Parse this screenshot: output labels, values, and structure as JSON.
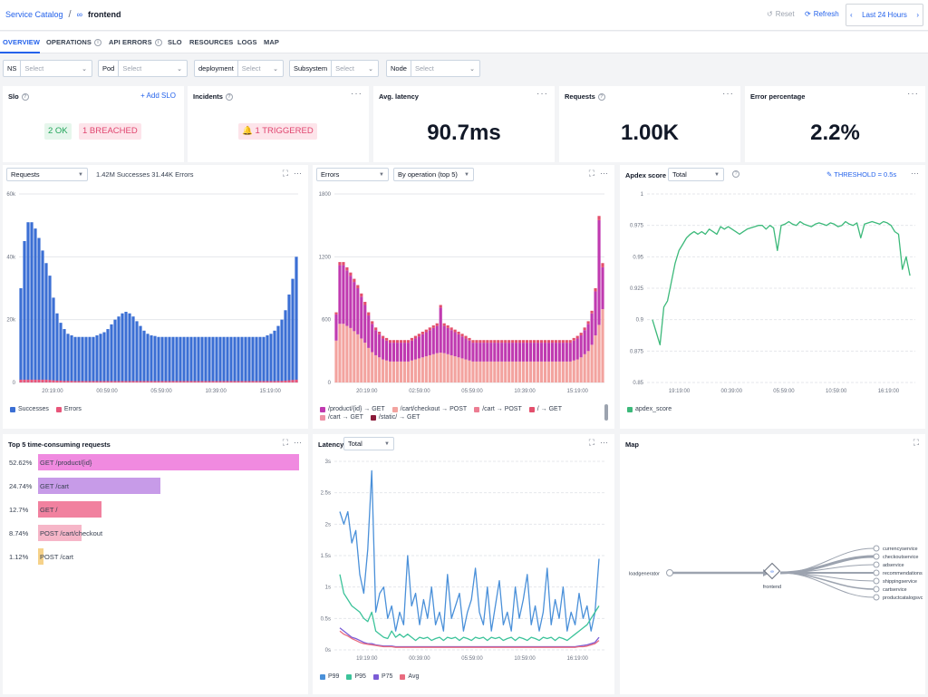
{
  "topbar": {
    "breadcrumb_root": "Service Catalog",
    "breadcrumb_sep": "/",
    "breadcrumb_current": "frontend",
    "reset_label": "Reset",
    "refresh_label": "Refresh",
    "time_range": "Last 24 Hours",
    "prev_arrow": "‹",
    "next_arrow": "›"
  },
  "tabs": [
    {
      "label": "OVERVIEW",
      "active": true
    },
    {
      "label": "OPERATIONS",
      "info": true
    },
    {
      "label": "API ERRORS",
      "info": true
    },
    {
      "label": "SLO"
    },
    {
      "label": "RESOURCES"
    },
    {
      "label": "LOGS"
    },
    {
      "label": "MAP"
    }
  ],
  "filters": [
    {
      "label": "NS",
      "placeholder": "Select"
    },
    {
      "label": "Pod",
      "placeholder": "Select"
    },
    {
      "label": "deployment",
      "placeholder": "Select"
    },
    {
      "label": "Subsystem",
      "placeholder": "Select"
    },
    {
      "label": "Node",
      "placeholder": "Select"
    }
  ],
  "stats": {
    "slo": {
      "title": "Slo",
      "add_label": "+ Add SLO",
      "ok_badge": "2 OK",
      "breached_badge": "1 BREACHED"
    },
    "incidents": {
      "title": "Incidents",
      "badge": "🔔 1 TRIGGERED"
    },
    "latency": {
      "title": "Avg. latency",
      "value": "90.7ms"
    },
    "requests": {
      "title": "Requests",
      "value": "1.00K"
    },
    "error_pct": {
      "title": "Error percentage",
      "value": "2.2%"
    }
  },
  "requests_panel": {
    "select": "Requests",
    "summary": "1.42M Successes 31.44K Errors",
    "legend": [
      {
        "name": "Successes",
        "color": "#3b6fd4"
      },
      {
        "name": "Errors",
        "color": "#e8557a"
      }
    ]
  },
  "errors_panel": {
    "select1": "Errors",
    "select2": "By operation (top 5)",
    "legend": [
      {
        "name": "/product/{id} → GET",
        "color": "#c03ab0"
      },
      {
        "name": "/cart/checkout → POST",
        "color": "#f3a39f"
      },
      {
        "name": "/cart → POST",
        "color": "#ec7d92"
      },
      {
        "name": "/ → GET",
        "color": "#e34f6c"
      },
      {
        "name": "/cart → GET",
        "color": "#ee90a5"
      },
      {
        "name": "/static/ → GET",
        "color": "#8b1b3a"
      }
    ]
  },
  "apdex_panel": {
    "title": "Apdex score",
    "select": "Total",
    "threshold": "THRESHOLD = 0.5s",
    "legend": [
      {
        "name": "apdex_score",
        "color": "#3cb97a"
      }
    ]
  },
  "top5_panel": {
    "title": "Top 5 time-consuming requests",
    "rows": [
      {
        "pct": "52.62%",
        "label": "GET /product/{id}",
        "value": 52.62,
        "color": "#f08ae0"
      },
      {
        "pct": "24.74%",
        "label": "GET /cart",
        "value": 24.74,
        "color": "#c79be8"
      },
      {
        "pct": "12.7%",
        "label": "GET /",
        "value": 12.7,
        "color": "#f1819f"
      },
      {
        "pct": "8.74%",
        "label": "POST /cart/checkout",
        "value": 8.74,
        "color": "#f6b6c8"
      },
      {
        "pct": "1.12%",
        "label": "POST /cart",
        "value": 1.12,
        "color": "#f6d28a"
      }
    ]
  },
  "latency_panel": {
    "title": "Latency",
    "select": "Total",
    "legend": [
      {
        "name": "P99",
        "color": "#4a90d9"
      },
      {
        "name": "P95",
        "color": "#3cc39a"
      },
      {
        "name": "P75",
        "color": "#7b5cd6"
      },
      {
        "name": "Avg",
        "color": "#e96b7f"
      }
    ]
  },
  "map_panel": {
    "title": "Map",
    "source": "loadgenerator",
    "center": "frontend",
    "targets": [
      "currencyservice",
      "checkoutservice",
      "adservice",
      "recommendations",
      "shippingservice",
      "cartservice",
      "productcatalogsvc"
    ]
  },
  "chart_data": [
    {
      "type": "bar",
      "id": "requests",
      "ylim": [
        0,
        60000
      ],
      "yticks": [
        "0",
        "20k",
        "40k",
        "60k"
      ],
      "xticks": [
        "20:19:00",
        "00:59:00",
        "05:59:00",
        "10:39:00",
        "15:19:00"
      ],
      "series": [
        {
          "name": "Successes",
          "values": [
            30000,
            45000,
            51000,
            51000,
            49000,
            46000,
            42000,
            38000,
            34000,
            27000,
            22000,
            19000,
            17000,
            15500,
            15000,
            14500,
            14500,
            14500,
            14500,
            14500,
            14500,
            15000,
            15500,
            16000,
            17000,
            18500,
            20000,
            21000,
            22000,
            22500,
            22000,
            21000,
            19500,
            18000,
            16500,
            15500,
            15000,
            14800,
            14500,
            14500,
            14500,
            14500,
            14500,
            14500,
            14500,
            14500,
            14500,
            14500,
            14500,
            14500,
            14500,
            14500,
            14500,
            14500,
            14500,
            14500,
            14500,
            14500,
            14500,
            14500,
            14500,
            14500,
            14500,
            14500,
            14500,
            14500,
            14500,
            14500,
            15000,
            15500,
            16500,
            18000,
            20000,
            23000,
            28000,
            33000,
            40000
          ]
        },
        {
          "name": "Errors",
          "values": [
            900,
            900,
            900,
            900,
            900,
            900,
            900,
            900,
            800,
            700,
            600,
            600,
            500,
            500,
            500,
            450,
            450,
            450,
            450,
            450,
            450,
            450,
            450,
            450,
            450,
            450,
            450,
            450,
            450,
            450,
            450,
            450,
            450,
            450,
            450,
            450,
            450,
            450,
            450,
            450,
            450,
            450,
            450,
            450,
            450,
            450,
            450,
            450,
            450,
            450,
            450,
            450,
            450,
            450,
            450,
            450,
            450,
            450,
            450,
            450,
            450,
            450,
            450,
            450,
            450,
            450,
            450,
            450,
            450,
            450,
            450,
            500,
            500,
            600,
            700,
            800,
            900
          ]
        }
      ]
    },
    {
      "type": "bar",
      "id": "errors",
      "stacked": true,
      "ylim": [
        0,
        1800
      ],
      "yticks": [
        "0",
        "600",
        "1200",
        "1800"
      ],
      "xticks": [
        "20:19:00",
        "02:59:00",
        "05:59:00",
        "10:39:00",
        "15:19:00"
      ],
      "series": [
        {
          "name": "/cart/checkout → POST",
          "values": [
            400,
            560,
            560,
            540,
            520,
            490,
            460,
            420,
            380,
            330,
            290,
            260,
            240,
            220,
            210,
            200,
            200,
            200,
            200,
            200,
            200,
            210,
            220,
            230,
            240,
            250,
            260,
            270,
            280,
            285,
            280,
            270,
            260,
            250,
            240,
            230,
            220,
            210,
            200,
            200,
            200,
            200,
            200,
            200,
            200,
            200,
            200,
            200,
            200,
            200,
            200,
            200,
            200,
            200,
            200,
            200,
            200,
            200,
            200,
            200,
            200,
            200,
            200,
            200,
            200,
            200,
            210,
            220,
            240,
            270,
            300,
            360,
            450,
            550,
            700
          ]
        },
        {
          "name": "/product/{id} → GET",
          "values": [
            250,
            560,
            560,
            530,
            500,
            470,
            440,
            400,
            360,
            310,
            270,
            240,
            220,
            200,
            190,
            180,
            180,
            180,
            180,
            180,
            180,
            190,
            200,
            210,
            220,
            230,
            240,
            250,
            260,
            430,
            260,
            250,
            240,
            230,
            220,
            210,
            200,
            190,
            180,
            180,
            180,
            180,
            180,
            180,
            180,
            180,
            180,
            180,
            180,
            180,
            180,
            180,
            180,
            180,
            180,
            180,
            180,
            180,
            180,
            180,
            180,
            180,
            180,
            180,
            180,
            180,
            190,
            200,
            210,
            230,
            260,
            300,
            420,
            1000,
            400
          ]
        },
        {
          "name": "/ → GET",
          "values": [
            20,
            30,
            30,
            30,
            30,
            30,
            30,
            30,
            30,
            30,
            25,
            25,
            25,
            25,
            25,
            25,
            25,
            25,
            25,
            25,
            25,
            25,
            25,
            25,
            25,
            25,
            25,
            25,
            25,
            25,
            25,
            25,
            25,
            25,
            25,
            25,
            25,
            25,
            25,
            25,
            25,
            25,
            25,
            25,
            25,
            25,
            25,
            25,
            25,
            25,
            25,
            25,
            25,
            25,
            25,
            25,
            25,
            25,
            25,
            25,
            25,
            25,
            25,
            25,
            25,
            25,
            25,
            25,
            25,
            25,
            25,
            25,
            30,
            40,
            40
          ]
        }
      ]
    },
    {
      "type": "line",
      "id": "apdex",
      "ylim": [
        0.85,
        1.0
      ],
      "yticks": [
        "0.85",
        "0.875",
        "0.9",
        "0.925",
        "0.95",
        "0.975",
        "1"
      ],
      "xticks": [
        "19:19:00",
        "00:39:00",
        "05:59:00",
        "10:59:00",
        "16:19:00"
      ],
      "series": [
        {
          "name": "apdex_score",
          "values": [
            0.9,
            0.89,
            0.88,
            0.91,
            0.915,
            0.93,
            0.945,
            0.955,
            0.96,
            0.965,
            0.968,
            0.97,
            0.968,
            0.97,
            0.968,
            0.972,
            0.97,
            0.968,
            0.974,
            0.972,
            0.974,
            0.972,
            0.97,
            0.968,
            0.97,
            0.972,
            0.973,
            0.974,
            0.975,
            0.975,
            0.972,
            0.975,
            0.973,
            0.955,
            0.975,
            0.976,
            0.978,
            0.976,
            0.975,
            0.978,
            0.976,
            0.975,
            0.974,
            0.976,
            0.977,
            0.976,
            0.975,
            0.977,
            0.976,
            0.974,
            0.975,
            0.978,
            0.976,
            0.975,
            0.977,
            0.965,
            0.976,
            0.977,
            0.978,
            0.977,
            0.976,
            0.978,
            0.977,
            0.975,
            0.97,
            0.968,
            0.94,
            0.95,
            0.935
          ]
        }
      ]
    },
    {
      "type": "line",
      "id": "latency",
      "ylim": [
        0,
        3
      ],
      "yticks": [
        "0s",
        "0.5s",
        "1s",
        "1.5s",
        "2s",
        "2.5s",
        "3s"
      ],
      "xticks": [
        "19:19:00",
        "00:39:00",
        "05:59:00",
        "10:59:00",
        "16:19:00"
      ],
      "series": [
        {
          "name": "P99",
          "values": [
            2.2,
            2.0,
            2.2,
            1.7,
            1.9,
            1.2,
            0.9,
            1.6,
            2.85,
            0.6,
            0.9,
            1.0,
            0.5,
            0.7,
            0.3,
            0.6,
            0.4,
            1.5,
            0.7,
            0.9,
            0.4,
            0.8,
            0.5,
            1.0,
            0.4,
            0.6,
            0.3,
            1.2,
            0.5,
            0.7,
            0.9,
            0.3,
            0.6,
            0.8,
            1.3,
            0.6,
            0.4,
            1.0,
            0.3,
            0.7,
            1.1,
            0.4,
            0.6,
            0.3,
            1.0,
            0.5,
            0.8,
            1.2,
            0.4,
            0.7,
            0.3,
            0.6,
            1.3,
            0.4,
            0.8,
            0.5,
            1.0,
            0.3,
            0.6,
            0.4,
            0.9,
            0.5,
            0.7,
            0.3,
            0.6,
            1.45
          ]
        },
        {
          "name": "P95",
          "values": [
            1.2,
            0.9,
            0.8,
            0.7,
            0.65,
            0.6,
            0.5,
            0.45,
            0.6,
            0.3,
            0.25,
            0.2,
            0.18,
            0.3,
            0.2,
            0.25,
            0.2,
            0.25,
            0.2,
            0.15,
            0.2,
            0.18,
            0.2,
            0.15,
            0.18,
            0.2,
            0.15,
            0.2,
            0.18,
            0.2,
            0.15,
            0.2,
            0.18,
            0.15,
            0.2,
            0.18,
            0.2,
            0.15,
            0.2,
            0.18,
            0.2,
            0.15,
            0.18,
            0.2,
            0.15,
            0.2,
            0.18,
            0.15,
            0.2,
            0.18,
            0.15,
            0.2,
            0.18,
            0.2,
            0.15,
            0.2,
            0.18,
            0.15,
            0.2,
            0.25,
            0.3,
            0.35,
            0.4,
            0.5,
            0.6,
            0.7
          ]
        },
        {
          "name": "P75",
          "values": [
            0.35,
            0.3,
            0.25,
            0.2,
            0.18,
            0.15,
            0.12,
            0.1,
            0.1,
            0.08,
            0.07,
            0.06,
            0.06,
            0.06,
            0.05,
            0.05,
            0.05,
            0.05,
            0.05,
            0.05,
            0.05,
            0.05,
            0.05,
            0.05,
            0.05,
            0.05,
            0.05,
            0.05,
            0.05,
            0.05,
            0.05,
            0.05,
            0.05,
            0.05,
            0.05,
            0.05,
            0.05,
            0.05,
            0.05,
            0.05,
            0.05,
            0.05,
            0.05,
            0.05,
            0.05,
            0.05,
            0.05,
            0.05,
            0.05,
            0.05,
            0.05,
            0.05,
            0.05,
            0.05,
            0.05,
            0.05,
            0.05,
            0.05,
            0.05,
            0.05,
            0.06,
            0.07,
            0.08,
            0.1,
            0.12,
            0.2
          ]
        },
        {
          "name": "Avg",
          "values": [
            0.3,
            0.25,
            0.22,
            0.18,
            0.15,
            0.12,
            0.1,
            0.09,
            0.08,
            0.07,
            0.06,
            0.05,
            0.05,
            0.05,
            0.04,
            0.04,
            0.04,
            0.04,
            0.04,
            0.04,
            0.04,
            0.04,
            0.04,
            0.04,
            0.04,
            0.04,
            0.04,
            0.04,
            0.04,
            0.04,
            0.04,
            0.04,
            0.04,
            0.04,
            0.04,
            0.04,
            0.04,
            0.04,
            0.04,
            0.04,
            0.04,
            0.04,
            0.04,
            0.04,
            0.04,
            0.04,
            0.04,
            0.04,
            0.04,
            0.04,
            0.04,
            0.04,
            0.04,
            0.04,
            0.04,
            0.04,
            0.04,
            0.04,
            0.04,
            0.04,
            0.05,
            0.05,
            0.06,
            0.08,
            0.1,
            0.15
          ]
        }
      ]
    }
  ]
}
